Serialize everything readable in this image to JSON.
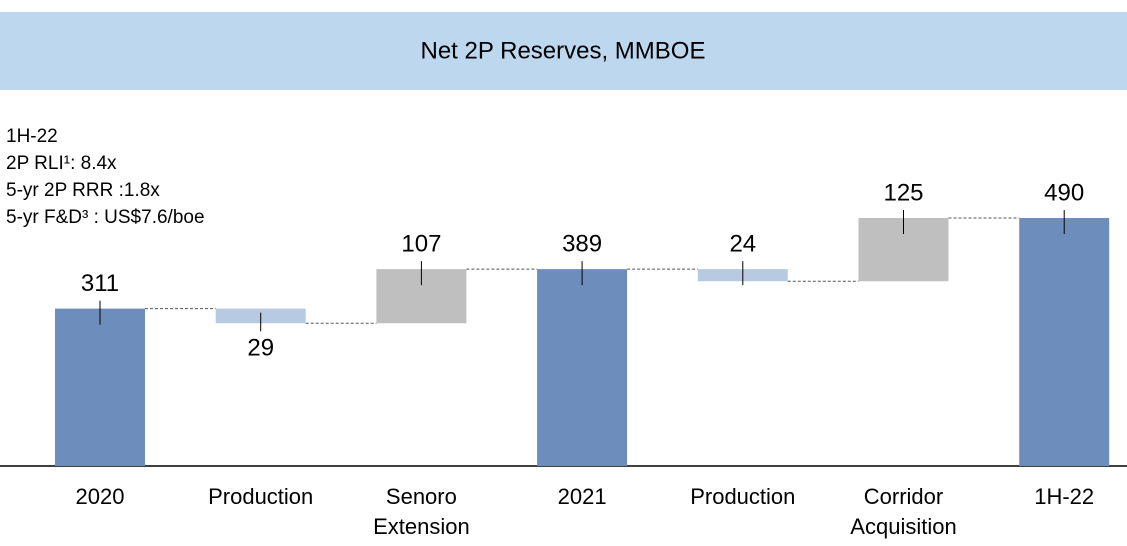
{
  "chart_data": {
    "type": "waterfall",
    "title": "Net 2P Reserves, MMBOE",
    "notes": [
      "1H-22",
      "2P RLI¹: 8.4x",
      "5-yr 2P RRR :1.8x",
      "5-yr F&D³ : US$7.6/boe"
    ],
    "categories": [
      "2020",
      "Production",
      "Senoro Extension",
      "2021",
      "Production",
      "Corridor Acquisition",
      "1H-22"
    ],
    "values": [
      311,
      -29,
      107,
      389,
      -24,
      125,
      490
    ],
    "value_labels": [
      "311",
      "29",
      "107",
      "389",
      "24",
      "125",
      "490"
    ],
    "totals": [
      true,
      false,
      false,
      true,
      false,
      false,
      true
    ],
    "colors": [
      "#6d8ebd",
      "#b8c9e2",
      "#bfbfbf",
      "#6d8ebd",
      "#b8c9e2",
      "#bfbfbf",
      "#6d8ebd"
    ]
  }
}
